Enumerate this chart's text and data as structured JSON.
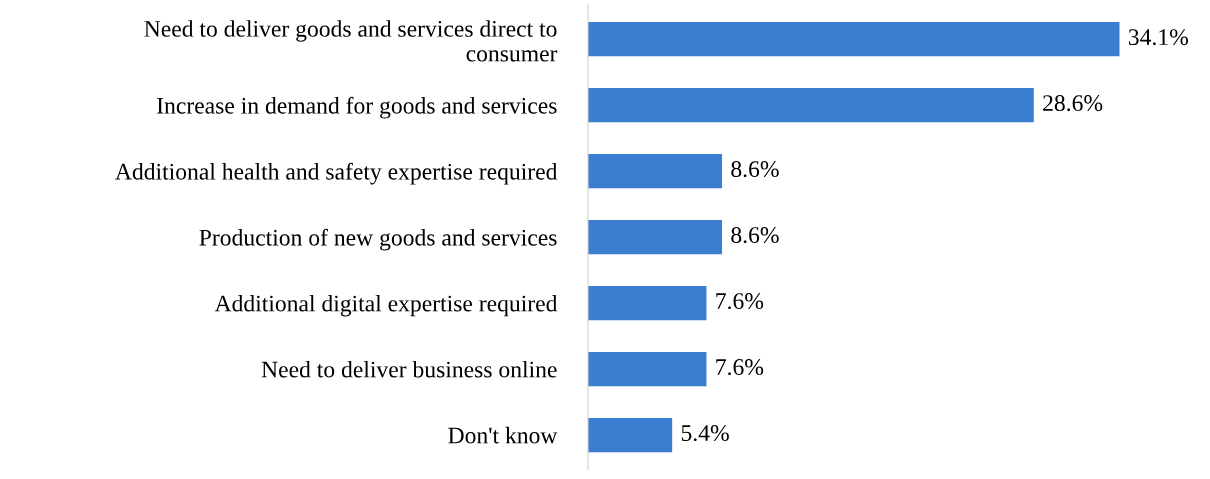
{
  "chart_data": {
    "type": "bar",
    "orientation": "horizontal",
    "categories": [
      "Need to deliver goods and services direct to\nconsumer",
      "Increase in demand for goods and services",
      "Additional health and safety expertise required",
      "Production of new goods and services",
      "Additional digital expertise required",
      "Need to deliver business online",
      "Don't know"
    ],
    "values": [
      34.1,
      28.6,
      8.6,
      8.6,
      7.6,
      7.6,
      5.4
    ],
    "value_labels": [
      "34.1%",
      "28.6%",
      "8.6%",
      "8.6%",
      "7.6%",
      "7.6%",
      "5.4%"
    ],
    "color": "#3b7dd0",
    "grid": false,
    "legend": false,
    "tick_labels": "y"
  }
}
